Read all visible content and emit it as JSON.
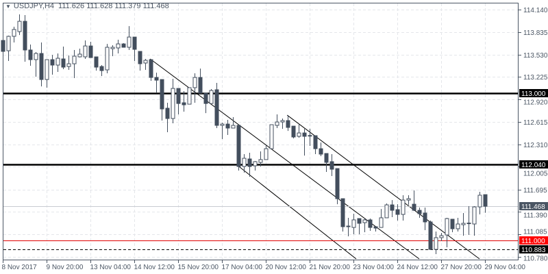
{
  "header": {
    "menu_icon": "triangle-down-icon",
    "symbol_timeframe": "USDJPY,H4",
    "ohlc": "111.626 111.628 111.379 111.468"
  },
  "chart_data": {
    "type": "candlestick",
    "title": "USDJPY,H4",
    "ylim": [
      110.78,
      114.14
    ],
    "grid": true,
    "y_ticks": [
      "114.140",
      "113.835",
      "113.530",
      "113.225",
      "112.920",
      "112.615",
      "112.310",
      "112.005",
      "111.695",
      "111.390",
      "111.085",
      "110.780"
    ],
    "x_ticks": [
      "8 Nov 2017",
      "9 Nov 20:00",
      "13 Nov 04:00",
      "14 Nov 12:00",
      "15 Nov 20:00",
      "17 Nov 04:00",
      "20 Nov 12:00",
      "21 Nov 20:00",
      "23 Nov 04:00",
      "24 Nov 12:00",
      "27 Nov 20:00",
      "29 Nov 04:00"
    ],
    "colors": {
      "bull_fill": "#ffffff",
      "bear_fill": "#434e5d",
      "outline": "#434e5d",
      "grid": "#e4e6ea"
    },
    "candles": [
      [
        113.721,
        113.74,
        113.386,
        113.572
      ],
      [
        113.581,
        113.786,
        113.442,
        113.777
      ],
      [
        113.777,
        113.907,
        113.693,
        113.87
      ],
      [
        113.842,
        114.075,
        113.795,
        113.981
      ],
      [
        113.981,
        114.065,
        113.432,
        113.591
      ],
      [
        113.591,
        113.665,
        113.377,
        113.46
      ],
      [
        113.46,
        113.563,
        113.228,
        113.544
      ],
      [
        113.544,
        113.693,
        113.097,
        113.19
      ],
      [
        113.19,
        113.46,
        113.079,
        113.46
      ],
      [
        113.46,
        113.525,
        113.256,
        113.386
      ],
      [
        113.386,
        113.544,
        113.293,
        113.479
      ],
      [
        113.47,
        113.637,
        113.33,
        113.358
      ],
      [
        113.367,
        113.516,
        113.321,
        113.404
      ],
      [
        113.404,
        113.591,
        113.209,
        113.507
      ],
      [
        113.498,
        113.609,
        113.49,
        113.535
      ],
      [
        113.498,
        113.721,
        113.47,
        113.646
      ],
      [
        113.646,
        113.702,
        113.488,
        113.488
      ],
      [
        113.498,
        113.498,
        113.311,
        113.358
      ],
      [
        113.367,
        113.386,
        113.237,
        113.311
      ],
      [
        113.321,
        113.674,
        113.274,
        113.628
      ],
      [
        113.609,
        113.656,
        113.507,
        113.628
      ],
      [
        113.619,
        113.73,
        113.544,
        113.674
      ],
      [
        113.674,
        113.684,
        113.628,
        113.628
      ],
      [
        113.628,
        113.916,
        113.591,
        113.767
      ],
      [
        113.767,
        113.767,
        113.442,
        113.6
      ],
      [
        113.572,
        113.572,
        113.311,
        113.404
      ],
      [
        113.414,
        113.47,
        113.321,
        113.451
      ],
      [
        113.46,
        113.46,
        113.172,
        113.218
      ],
      [
        113.218,
        113.283,
        113.014,
        113.181
      ],
      [
        113.19,
        113.19,
        112.632,
        112.79
      ],
      [
        112.8,
        112.874,
        112.474,
        112.66
      ],
      [
        112.66,
        113.2,
        112.595,
        113.069
      ],
      [
        113.069,
        113.069,
        112.716,
        112.864
      ],
      [
        112.874,
        113.032,
        112.753,
        112.846
      ],
      [
        112.855,
        113.079,
        112.855,
        113.079
      ],
      [
        113.079,
        113.274,
        112.874,
        113.218
      ],
      [
        113.218,
        113.339,
        113.004,
        113.004
      ],
      [
        113.004,
        113.004,
        112.734,
        112.864
      ],
      [
        112.864,
        113.06,
        112.864,
        113.041
      ],
      [
        113.051,
        113.144,
        112.53,
        112.567
      ],
      [
        112.567,
        112.604,
        112.381,
        112.585
      ],
      [
        112.585,
        112.641,
        112.437,
        112.53
      ],
      [
        112.53,
        112.679,
        112.53,
        112.567
      ],
      [
        112.567,
        112.567,
        111.953,
        112.008
      ],
      [
        112.008,
        112.176,
        111.925,
        112.12
      ],
      [
        112.111,
        112.195,
        111.869,
        112.008
      ],
      [
        112.018,
        112.083,
        111.953,
        112.074
      ],
      [
        112.064,
        112.213,
        112.008,
        112.102
      ],
      [
        112.102,
        112.297,
        112.102,
        112.25
      ],
      [
        112.25,
        112.576,
        112.25,
        112.576
      ],
      [
        112.567,
        112.716,
        112.53,
        112.613
      ],
      [
        112.613,
        112.66,
        112.52,
        112.632
      ],
      [
        112.632,
        112.706,
        112.492,
        112.539
      ],
      [
        112.557,
        112.557,
        112.39,
        112.409
      ],
      [
        112.418,
        112.585,
        112.399,
        112.464
      ],
      [
        112.464,
        112.52,
        112.157,
        112.418
      ],
      [
        112.427,
        112.52,
        112.288,
        112.43
      ],
      [
        112.427,
        112.427,
        112.176,
        112.25
      ],
      [
        112.25,
        112.334,
        112.148,
        112.176
      ],
      [
        112.185,
        112.185,
        111.934,
        112.064
      ],
      [
        112.074,
        112.176,
        111.878,
        111.971
      ],
      [
        111.98,
        111.98,
        111.496,
        111.571
      ],
      [
        111.571,
        111.571,
        111.124,
        111.19
      ],
      [
        111.199,
        111.311,
        111.059,
        111.19
      ],
      [
        111.18,
        111.366,
        111.087,
        111.283
      ],
      [
        111.301,
        111.301,
        111.087,
        111.236
      ],
      [
        111.245,
        111.301,
        111.115,
        111.283
      ],
      [
        111.283,
        111.301,
        111.134,
        111.18
      ],
      [
        111.19,
        111.19,
        111.124,
        111.171
      ],
      [
        111.18,
        111.431,
        111.18,
        111.311
      ],
      [
        111.311,
        111.506,
        111.311,
        111.487
      ],
      [
        111.487,
        111.552,
        111.32,
        111.413
      ],
      [
        111.422,
        111.496,
        111.273,
        111.357
      ],
      [
        111.357,
        111.618,
        111.273,
        111.552
      ],
      [
        111.552,
        111.618,
        111.487,
        111.571
      ],
      [
        111.496,
        111.683,
        111.404,
        111.413
      ],
      [
        111.413,
        111.45,
        111.311,
        111.366
      ],
      [
        111.376,
        111.45,
        111.143,
        111.255
      ],
      [
        111.255,
        111.273,
        110.873,
        110.882
      ],
      [
        110.882,
        111.124,
        110.817,
        111.041
      ],
      [
        111.041,
        111.106,
        110.994,
        111.068
      ],
      [
        111.078,
        111.311,
        110.91,
        111.301
      ],
      [
        111.292,
        111.292,
        111.115,
        111.162
      ],
      [
        111.162,
        111.311,
        111.124,
        111.227
      ],
      [
        111.217,
        111.376,
        111.068,
        111.236
      ],
      [
        111.236,
        111.469,
        111.078,
        111.24
      ],
      [
        111.227,
        111.469,
        111.068,
        111.459
      ],
      [
        111.459,
        111.664,
        111.357,
        111.618
      ],
      [
        111.626,
        111.628,
        111.379,
        111.468
      ]
    ],
    "levels": [
      {
        "label": "113.000",
        "price": 113.0,
        "color": "#000000",
        "style": "solid-thick",
        "tag_bg": "#000000"
      },
      {
        "label": "112.040",
        "price": 112.04,
        "color": "#000000",
        "style": "solid-thick",
        "tag_bg": "#000000"
      },
      {
        "label": "111.000",
        "price": 111.0,
        "color": "#e00000",
        "style": "solid",
        "tag_bg": "#ff0000"
      },
      {
        "label": "110.883",
        "price": 110.883,
        "color": "#000000",
        "style": "dashed",
        "tag_bg": "#000000"
      }
    ],
    "bid": {
      "label": "111.468",
      "price": 111.468,
      "tag_bg": "#4a5563"
    }
  }
}
